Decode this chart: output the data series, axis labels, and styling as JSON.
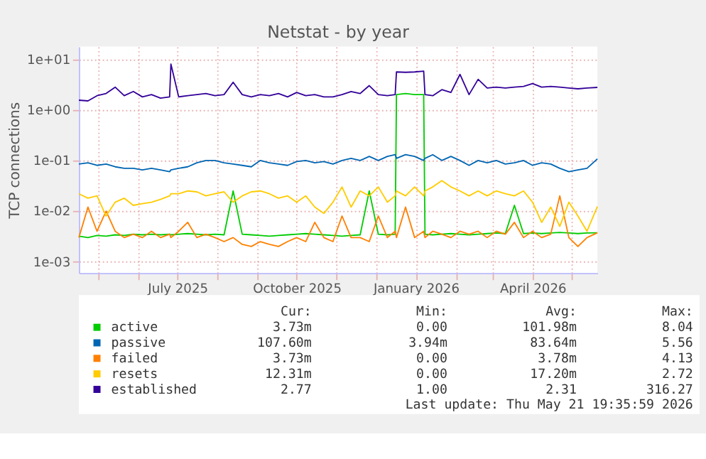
{
  "chart_data": {
    "type": "line",
    "title": "Netstat - by year",
    "ylabel": "TCP connections",
    "log": "y",
    "grid": true,
    "legend": "bottom",
    "x": [
      "2025-04-16",
      "2025-04-23",
      "2025-04-30",
      "2025-05-07",
      "2025-05-14",
      "2025-05-21",
      "2025-05-28",
      "2025-06-04",
      "2025-06-11",
      "2025-06-18",
      "2025-06-25",
      "2025-06-26",
      "2025-07-02",
      "2025-07-09",
      "2025-07-16",
      "2025-07-23",
      "2025-07-30",
      "2025-08-06",
      "2025-08-13",
      "2025-08-20",
      "2025-08-27",
      "2025-09-03",
      "2025-09-10",
      "2025-09-17",
      "2025-09-24",
      "2025-10-01",
      "2025-10-08",
      "2025-10-15",
      "2025-10-22",
      "2025-10-29",
      "2025-11-05",
      "2025-11-12",
      "2025-11-19",
      "2025-11-26",
      "2025-12-03",
      "2025-12-10",
      "2025-12-16",
      "2025-12-17",
      "2025-12-24",
      "2025-12-31",
      "2026-01-07",
      "2026-01-08",
      "2026-01-14",
      "2026-01-21",
      "2026-01-28",
      "2026-02-04",
      "2026-02-11",
      "2026-02-18",
      "2026-02-25",
      "2026-03-04",
      "2026-03-11",
      "2026-03-18",
      "2026-03-25",
      "2026-04-01",
      "2026-04-08",
      "2026-04-15",
      "2026-04-22",
      "2026-04-29",
      "2026-05-06",
      "2026-05-13",
      "2026-05-21"
    ],
    "xlim": [
      "2025-04-16",
      "2026-05-21"
    ],
    "xticks": [
      {
        "value": "2025-05-01",
        "label": null
      },
      {
        "value": "2025-06-01",
        "label": null
      },
      {
        "value": "2025-07-01",
        "label": "July 2025"
      },
      {
        "value": "2025-08-01",
        "label": null
      },
      {
        "value": "2025-09-01",
        "label": null
      },
      {
        "value": "2025-10-01",
        "label": "October 2025"
      },
      {
        "value": "2025-11-01",
        "label": null
      },
      {
        "value": "2025-12-01",
        "label": null
      },
      {
        "value": "2026-01-01",
        "label": "January 2026"
      },
      {
        "value": "2026-02-01",
        "label": null
      },
      {
        "value": "2026-03-01",
        "label": null
      },
      {
        "value": "2026-04-01",
        "label": "April 2026"
      },
      {
        "value": "2026-05-01",
        "label": null
      }
    ],
    "ylim": [
      0.0006,
      17.7
    ],
    "yticks": [
      {
        "value": 0.001,
        "label": "1e-03"
      },
      {
        "value": 0.01,
        "label": "1e-02"
      },
      {
        "value": 0.1,
        "label": "1e-01"
      },
      {
        "value": 1,
        "label": "1e+00"
      },
      {
        "value": 10,
        "label": "1e+01"
      }
    ],
    "series": [
      {
        "name": "active",
        "color": "#00cc00",
        "values": [
          0.0032,
          0.003,
          0.0033,
          0.0032,
          0.0034,
          0.0033,
          0.0035,
          0.0034,
          0.0035,
          0.0034,
          0.0035,
          0.0034,
          0.0035,
          0.0036,
          0.0035,
          0.0034,
          0.0035,
          0.0034,
          0.025,
          0.0035,
          0.0034,
          0.0033,
          0.0032,
          0.0033,
          0.0034,
          0.0035,
          0.0036,
          0.0035,
          0.0034,
          0.0033,
          0.0032,
          0.0033,
          0.0034,
          0.025,
          0.0035,
          0.0034,
          0.0035,
          2.0,
          2.1,
          2.0,
          2.0,
          0.0035,
          0.0034,
          0.0035,
          0.0036,
          0.0035,
          0.0034,
          0.0035,
          0.0036,
          0.0037,
          0.0036,
          0.013,
          0.0036,
          0.0037,
          0.0036,
          0.0037,
          0.0038,
          0.0037,
          0.0036,
          0.0037,
          0.00373
        ]
      },
      {
        "name": "passive",
        "color": "#0066b3",
        "values": [
          0.085,
          0.09,
          0.08,
          0.085,
          0.075,
          0.07,
          0.07,
          0.065,
          0.07,
          0.065,
          0.06,
          0.065,
          0.07,
          0.075,
          0.09,
          0.1,
          0.1,
          0.09,
          0.085,
          0.08,
          0.075,
          0.1,
          0.09,
          0.085,
          0.08,
          0.095,
          0.1,
          0.09,
          0.095,
          0.085,
          0.1,
          0.11,
          0.1,
          0.12,
          0.1,
          0.12,
          0.13,
          0.11,
          0.13,
          0.12,
          0.1,
          0.11,
          0.13,
          0.1,
          0.12,
          0.1,
          0.08,
          0.1,
          0.09,
          0.1,
          0.085,
          0.09,
          0.1,
          0.08,
          0.09,
          0.085,
          0.07,
          0.06,
          0.065,
          0.07,
          0.1076
        ]
      },
      {
        "name": "failed",
        "color": "#ff8000",
        "values": [
          0.003,
          0.012,
          0.004,
          0.01,
          0.004,
          0.003,
          0.0035,
          0.003,
          0.004,
          0.003,
          0.0035,
          0.003,
          0.004,
          0.006,
          0.003,
          0.0035,
          0.003,
          0.0025,
          0.003,
          0.0022,
          0.002,
          0.0025,
          0.0022,
          0.002,
          0.0025,
          0.003,
          0.0025,
          0.006,
          0.003,
          0.0025,
          0.008,
          0.003,
          0.003,
          0.0025,
          0.008,
          0.003,
          0.004,
          0.003,
          0.012,
          0.003,
          0.004,
          0.003,
          0.004,
          0.0035,
          0.003,
          0.004,
          0.0035,
          0.004,
          0.003,
          0.004,
          0.0035,
          0.006,
          0.003,
          0.004,
          0.003,
          0.0035,
          0.02,
          0.003,
          0.002,
          0.003,
          0.00373
        ]
      },
      {
        "name": "resets",
        "color": "#ffcc00",
        "values": [
          0.022,
          0.018,
          0.02,
          0.008,
          0.015,
          0.018,
          0.013,
          0.014,
          0.015,
          0.017,
          0.02,
          0.022,
          0.022,
          0.025,
          0.024,
          0.02,
          0.022,
          0.024,
          0.015,
          0.02,
          0.024,
          0.025,
          0.022,
          0.018,
          0.02,
          0.015,
          0.02,
          0.012,
          0.009,
          0.015,
          0.03,
          0.012,
          0.025,
          0.02,
          0.03,
          0.015,
          0.02,
          0.025,
          0.02,
          0.03,
          0.02,
          0.025,
          0.03,
          0.04,
          0.03,
          0.025,
          0.02,
          0.025,
          0.02,
          0.025,
          0.022,
          0.02,
          0.025,
          0.015,
          0.006,
          0.012,
          0.005,
          0.015,
          0.008,
          0.004,
          0.01231
        ]
      },
      {
        "name": "established",
        "color": "#330099",
        "values": [
          1.55,
          1.5,
          1.9,
          2.1,
          2.8,
          1.9,
          2.3,
          1.8,
          2.0,
          1.7,
          1.8,
          8.0,
          1.8,
          1.9,
          2.0,
          2.1,
          1.9,
          2.0,
          3.5,
          2.0,
          1.8,
          2.0,
          1.9,
          2.1,
          1.8,
          2.2,
          1.9,
          2.0,
          1.8,
          1.8,
          2.0,
          2.3,
          2.1,
          3.0,
          2.0,
          1.9,
          2.0,
          5.6,
          5.5,
          5.6,
          5.8,
          2.0,
          1.9,
          2.5,
          2.2,
          5.0,
          2.0,
          4.0,
          2.7,
          2.8,
          2.7,
          2.8,
          2.9,
          3.3,
          2.8,
          2.9,
          2.8,
          2.7,
          2.6,
          2.7,
          2.77
        ]
      }
    ],
    "annotations": [
      "Cur:",
      "Min:",
      "Avg:",
      "Max:",
      "3.73m",
      "0.00",
      "101.98m",
      "8.04",
      "107.60m",
      "3.94m",
      "83.64m",
      "5.56",
      "3.73m",
      "0.00",
      "3.78m",
      "4.13",
      "12.31m",
      "0.00",
      "17.20m",
      "2.72",
      "2.77",
      "1.00",
      "2.31",
      "316.27",
      "Last update: Thu May 21 19:35:59 2026"
    ]
  }
}
